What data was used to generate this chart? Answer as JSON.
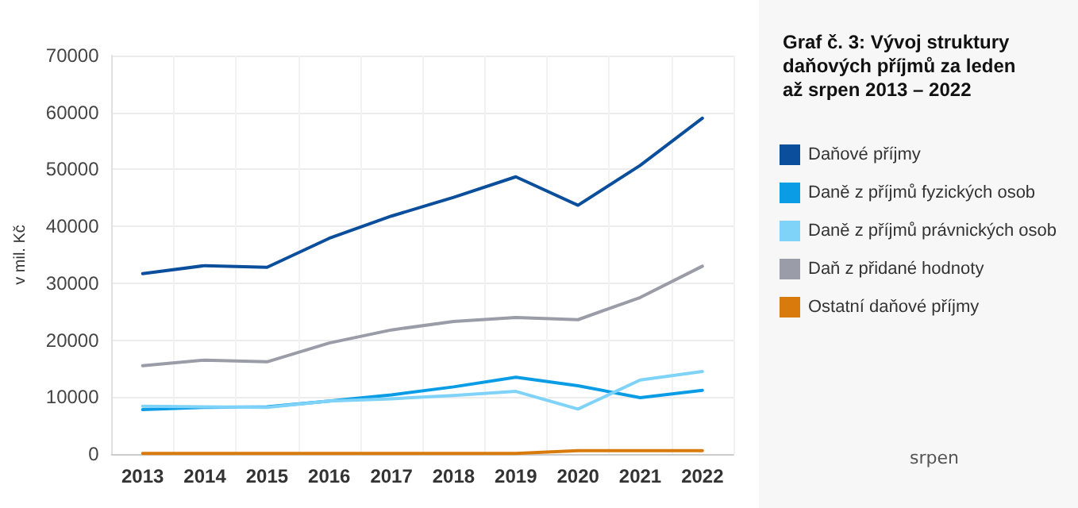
{
  "chart_data": {
    "type": "line",
    "title": "Graf č. 3: Vývoj struktury daňových příjmů za leden až srpen 2013 – 2022",
    "ylabel": "v mil. Kč",
    "annotations": [
      "srpen"
    ],
    "categories": [
      "2013",
      "2014",
      "2015",
      "2016",
      "2017",
      "2018",
      "2019",
      "2020",
      "2021",
      "2022"
    ],
    "series": [
      {
        "name": "Daňové příjmy",
        "color": "#0b4f9c",
        "values": [
          31700,
          33100,
          32800,
          37900,
          41800,
          45100,
          48700,
          43700,
          50700,
          59000
        ]
      },
      {
        "name": "Daně z příjmů fyzických osob",
        "color": "#0a9de6",
        "values": [
          7800,
          8200,
          8300,
          9300,
          10400,
          11800,
          13500,
          12000,
          9900,
          11200
        ]
      },
      {
        "name": "Daně z příjmů právnických osob",
        "color": "#7fd3f9",
        "values": [
          8400,
          8300,
          8200,
          9300,
          9700,
          10300,
          11000,
          7900,
          13000,
          14500
        ]
      },
      {
        "name": "Daň z přidané hodnoty",
        "color": "#9a9ca8",
        "values": [
          15500,
          16500,
          16200,
          19500,
          21800,
          23300,
          24000,
          23600,
          27500,
          33000
        ]
      },
      {
        "name": "Ostatní daňové příjmy",
        "color": "#d87a0c",
        "values": [
          100,
          100,
          100,
          100,
          100,
          100,
          100,
          600,
          600,
          600
        ]
      }
    ],
    "ylim": [
      0,
      70000
    ],
    "yticks": [
      0,
      10000,
      20000,
      30000,
      40000,
      50000,
      60000,
      70000
    ],
    "grid": true,
    "legend": "right",
    "marker": "none",
    "line_style": "solid"
  }
}
